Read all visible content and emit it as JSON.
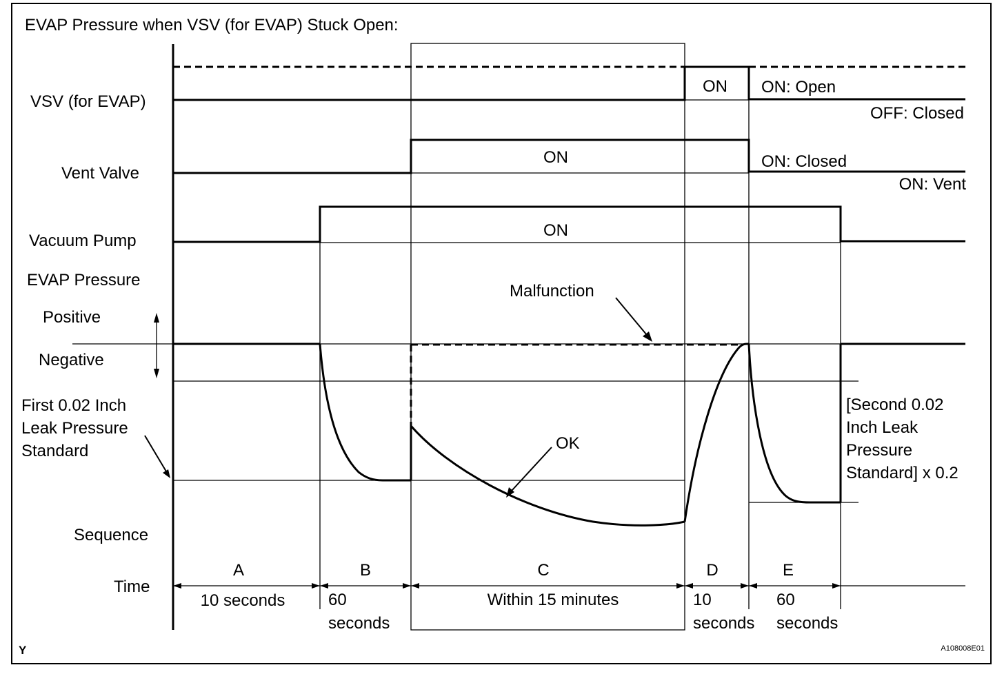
{
  "title": "EVAP Pressure when VSV (for EVAP) Stuck Open:",
  "row_labels": {
    "vsv": "VSV (for EVAP)",
    "vent_valve": "Vent Valve",
    "vacuum_pump": "Vacuum Pump",
    "evap_pressure": "EVAP Pressure",
    "positive": "Positive",
    "negative": "Negative",
    "first_standard_1": "First 0.02 Inch",
    "first_standard_2": "Leak Pressure",
    "first_standard_3": "Standard",
    "sequence": "Sequence",
    "time": "Time"
  },
  "state_labels": {
    "vsv_on": "ON",
    "vsv_on_open": "ON: Open",
    "vsv_off_closed": "OFF: Closed",
    "vent_on": "ON",
    "vent_on_closed": "ON: Closed",
    "vent_on_vent": "ON: Vent",
    "pump_on": "ON"
  },
  "curve_labels": {
    "malfunction": "Malfunction",
    "ok": "OK",
    "second_standard_1": "[Second 0.02",
    "second_standard_2": "Inch Leak",
    "second_standard_3": "Pressure",
    "second_standard_4": "Standard] x 0.2"
  },
  "sequence": [
    {
      "id": "A",
      "duration_1": "10 seconds",
      "duration_2": ""
    },
    {
      "id": "B",
      "duration_1": "60",
      "duration_2": "seconds"
    },
    {
      "id": "C",
      "duration_1": "Within 15 minutes",
      "duration_2": ""
    },
    {
      "id": "D",
      "duration_1": "10",
      "duration_2": "seconds"
    },
    {
      "id": "E",
      "duration_1": "60",
      "duration_2": "seconds"
    }
  ],
  "footer": {
    "left_mark": "Y",
    "figure_code": "A108008E01"
  }
}
